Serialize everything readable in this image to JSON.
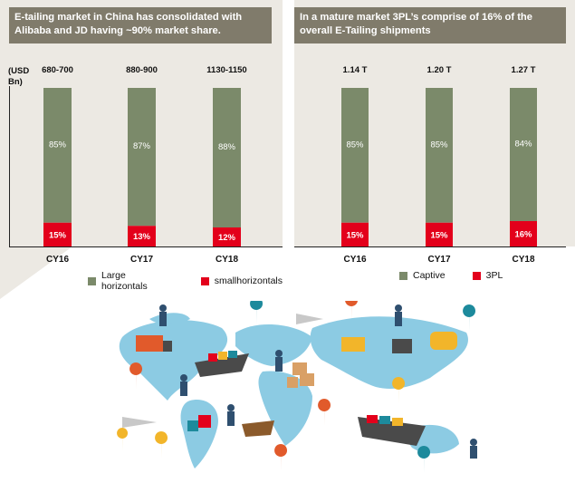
{
  "colors": {
    "header_bg": "#807b6b",
    "bar_main": "#7b8a6a",
    "bar_small": "#e3001b",
    "background_panel": "#ece9e3",
    "map": "#8ccbe3"
  },
  "left_panel": {
    "title": "E-tailing market in China has consolidated with Alibaba and JD having ~90% market share.",
    "unit_label_1": "(USD",
    "unit_label_2": "Bn)",
    "legend": [
      "Large horizontals",
      "smallhorizontals"
    ]
  },
  "right_panel": {
    "title": "In a mature market 3PL’s comprise of 16% of the overall E-Tailing shipments",
    "legend": [
      "Captive",
      "3PL"
    ]
  },
  "chart_data": [
    {
      "type": "bar",
      "stacked": true,
      "normalized_100": true,
      "categories": [
        "CY16",
        "CY17",
        "CY18"
      ],
      "top_labels": [
        "680-700",
        "880-900",
        "1130-1150"
      ],
      "ylabel": "(USD Bn)",
      "series": [
        {
          "name": "Large horizontals",
          "values": [
            85,
            87,
            88
          ],
          "labels": [
            "85%",
            "87%",
            "88%"
          ]
        },
        {
          "name": "smallhorizontals",
          "values": [
            15,
            13,
            12
          ],
          "labels": [
            "15%",
            "13%",
            "12%"
          ]
        }
      ]
    },
    {
      "type": "bar",
      "stacked": true,
      "normalized_100": true,
      "categories": [
        "CY16",
        "CY17",
        "CY18"
      ],
      "top_labels": [
        "1.14 T",
        "1.20 T",
        "1.27 T"
      ],
      "series": [
        {
          "name": "Captive",
          "values": [
            85,
            85,
            84
          ],
          "labels": [
            "85%",
            "85%",
            "84%"
          ]
        },
        {
          "name": "3PL",
          "values": [
            15,
            15,
            16
          ],
          "labels": [
            "15%",
            "15%",
            "16%"
          ]
        }
      ]
    }
  ]
}
